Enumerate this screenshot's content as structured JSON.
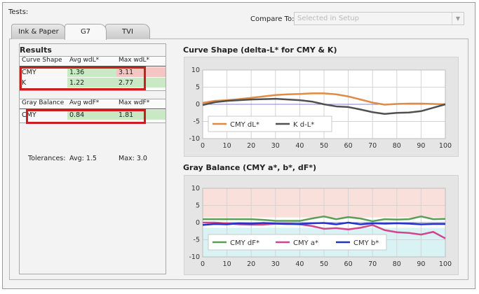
{
  "header": {
    "tests_label": "Tests:",
    "compare_label": "Compare To:",
    "compare_value": "Selected in Setup"
  },
  "tabs": [
    {
      "label": "Ink & Paper",
      "active": false
    },
    {
      "label": "G7",
      "active": true
    },
    {
      "label": "TVI",
      "active": false
    }
  ],
  "results": {
    "title": "Results",
    "curve_shape": {
      "headers": [
        "Curve Shape",
        "Avg wdL*",
        "Max wdL*"
      ],
      "rows": [
        {
          "label": "CMY",
          "avg": "1.36",
          "max": "3.11",
          "max_status": "fail"
        },
        {
          "label": "K",
          "avg": "1.22",
          "max": "2.77",
          "max_status": "pass"
        }
      ]
    },
    "gray_balance": {
      "headers": [
        "Gray Balance",
        "Avg wdF*",
        "Max wdF*"
      ],
      "rows": [
        {
          "label": "CMY",
          "avg": "0.84",
          "max": "1.81",
          "max_status": "pass"
        }
      ]
    },
    "tolerances": {
      "label": "Tolerances:",
      "avg": "Avg: 1.5",
      "max": "Max: 3.0"
    }
  },
  "colors": {
    "pass": "#c9e8c4",
    "fail": "#f3c6c4",
    "highlight": "#cc1e1e",
    "cmy_dl": "#e08a43",
    "k_dl": "#505050",
    "cmy_df": "#5a9e58",
    "cmy_a": "#d1458f",
    "cmy_b": "#2233cc"
  },
  "chart_data": [
    {
      "type": "line",
      "title": "Curve Shape (delta-L* for CMY & K)",
      "xlabel": "",
      "ylabel": "",
      "x": [
        0,
        5,
        10,
        15,
        20,
        25,
        30,
        35,
        40,
        45,
        50,
        55,
        60,
        65,
        70,
        75,
        80,
        85,
        90,
        95,
        100
      ],
      "xticks": [
        0,
        10,
        20,
        30,
        40,
        50,
        60,
        70,
        80,
        90,
        100
      ],
      "yticks": [
        10,
        5,
        0,
        -5,
        -10
      ],
      "ylim": [
        -10,
        10
      ],
      "grid": true,
      "legend": "bottom-left",
      "series": [
        {
          "name": "CMY dL*",
          "color": "#e08a43",
          "values": [
            0.4,
            1.0,
            1.2,
            1.5,
            1.9,
            2.3,
            2.7,
            2.9,
            3.0,
            3.2,
            3.2,
            2.9,
            2.3,
            1.4,
            0.5,
            -0.1,
            0.1,
            0.2,
            0.2,
            0.1,
            0.0
          ]
        },
        {
          "name": "K d-L*",
          "color": "#505050",
          "values": [
            -0.2,
            0.6,
            1.0,
            1.2,
            1.4,
            1.5,
            1.6,
            1.4,
            1.2,
            0.8,
            0.0,
            -0.6,
            -0.8,
            -1.5,
            -2.3,
            -2.8,
            -2.5,
            -2.4,
            -2.0,
            -1.0,
            0.0
          ]
        }
      ]
    },
    {
      "type": "line",
      "title": "Gray Balance (CMY a*, b*, dF*)",
      "xlabel": "",
      "ylabel": "",
      "x": [
        0,
        5,
        10,
        15,
        20,
        25,
        30,
        35,
        40,
        45,
        50,
        55,
        60,
        65,
        70,
        75,
        80,
        85,
        90,
        95,
        100
      ],
      "xticks": [
        0,
        10,
        20,
        30,
        40,
        50,
        60,
        70,
        80,
        90,
        100
      ],
      "yticks": [
        10,
        5,
        0,
        -5,
        -10
      ],
      "ylim": [
        -10,
        10
      ],
      "grid": true,
      "legend": "bottom-left",
      "background_bands": "tolerance shading: pink above, cyan below",
      "series": [
        {
          "name": "CMY dF*",
          "color": "#5a9e58",
          "values": [
            1.0,
            1.0,
            1.0,
            1.0,
            1.0,
            0.8,
            0.5,
            0.5,
            0.5,
            1.2,
            1.8,
            1.0,
            1.6,
            1.2,
            0.4,
            1.0,
            0.9,
            1.0,
            1.8,
            1.0,
            1.1
          ]
        },
        {
          "name": "CMY a*",
          "color": "#d1458f",
          "values": [
            0.0,
            0.0,
            -0.2,
            -0.5,
            -0.6,
            -0.6,
            -0.3,
            -0.3,
            -0.5,
            -1.0,
            -1.8,
            -1.6,
            -2.0,
            -1.5,
            -0.7,
            -2.2,
            -2.8,
            -3.0,
            -3.5,
            -2.7,
            -4.6
          ]
        },
        {
          "name": "CMY b*",
          "color": "#2233cc",
          "values": [
            -0.7,
            -0.4,
            -0.5,
            -0.2,
            -0.3,
            -0.1,
            -0.3,
            -0.4,
            -0.4,
            -0.2,
            -0.1,
            -0.5,
            0.0,
            -0.5,
            -0.2,
            -0.3,
            -0.2,
            -0.3,
            -0.5,
            -0.4,
            -0.4
          ]
        }
      ]
    }
  ]
}
